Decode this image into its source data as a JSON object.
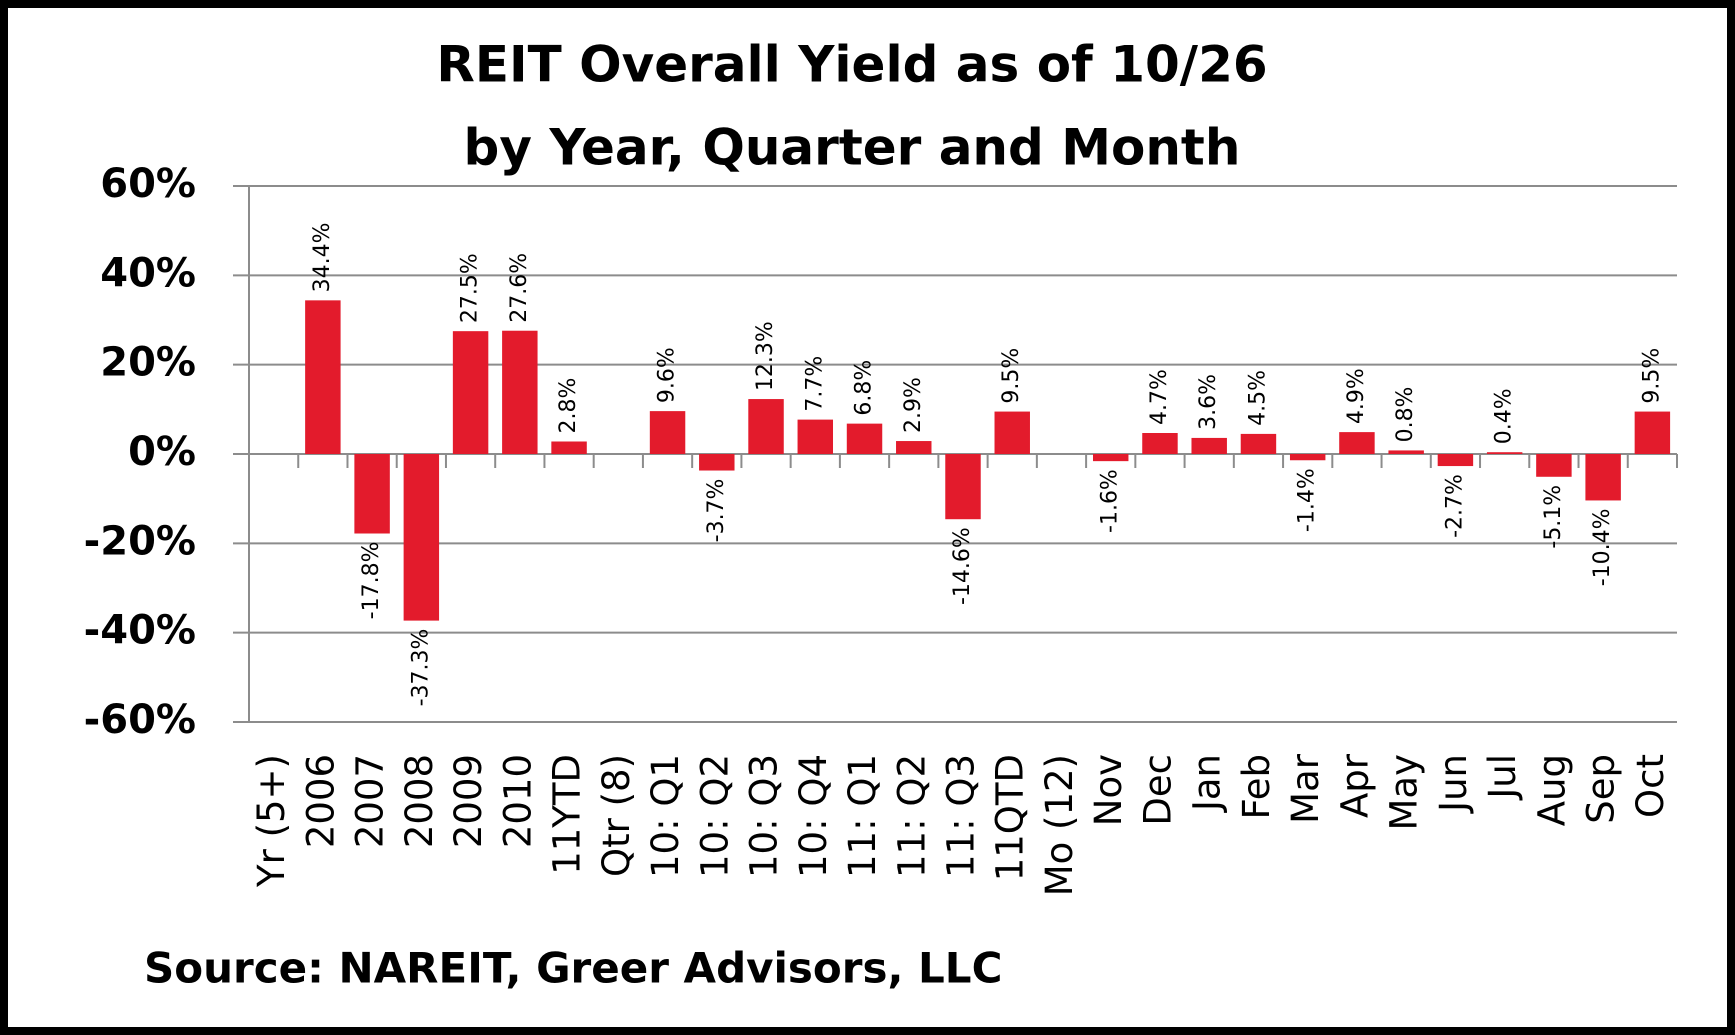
{
  "chart_data": {
    "type": "bar",
    "title": [
      "REIT Overall Yield as of 10/26",
      "by Year, Quarter and Month"
    ],
    "source": "Source: NAREIT, Greer Advisors, LLC",
    "categories": [
      "Yr (5+)",
      "2006",
      "2007",
      "2008",
      "2009",
      "2010",
      "11YTD",
      "Qtr (8)",
      "10: Q1",
      "10: Q2",
      "10: Q3",
      "10: Q4",
      "11: Q1",
      "11: Q2",
      "11: Q3",
      "11QTD",
      "Mo (12)",
      "Nov",
      "Dec",
      "Jan",
      "Feb",
      "Mar",
      "Apr",
      "May",
      "Jun",
      "Jul",
      "Aug",
      "Sep",
      "Oct"
    ],
    "values": [
      null,
      34.4,
      -17.8,
      -37.3,
      27.5,
      27.6,
      2.8,
      null,
      9.6,
      -3.7,
      12.3,
      7.7,
      6.8,
      2.9,
      -14.6,
      9.5,
      null,
      -1.6,
      4.7,
      3.6,
      4.5,
      -1.4,
      4.9,
      0.8,
      -2.7,
      0.4,
      -5.1,
      -10.4,
      9.5
    ],
    "value_labels": [
      null,
      "34.4%",
      "-17.8%",
      "-37.3%",
      "27.5%",
      "27.6%",
      "2.8%",
      null,
      "9.6%",
      "-3.7%",
      "12.3%",
      "7.7%",
      "6.8%",
      "2.9%",
      "-14.6%",
      "9.5%",
      null,
      "-1.6%",
      "4.7%",
      "3.6%",
      "4.5%",
      "-1.4%",
      "4.9%",
      "0.8%",
      "-2.7%",
      "0.4%",
      "-5.1%",
      "-10.4%",
      "9.5%"
    ],
    "color": "#e31b2c",
    "ylim": [
      -60,
      60
    ],
    "yticks": [
      {
        "value": -60,
        "label": "-60%"
      },
      {
        "value": -40,
        "label": "-40%"
      },
      {
        "value": -20,
        "label": "-20%"
      },
      {
        "value": 0,
        "label": "0%"
      },
      {
        "value": 20,
        "label": "20%"
      },
      {
        "value": 40,
        "label": "40%"
      },
      {
        "value": 60,
        "label": "60%"
      }
    ],
    "grid": true
  }
}
